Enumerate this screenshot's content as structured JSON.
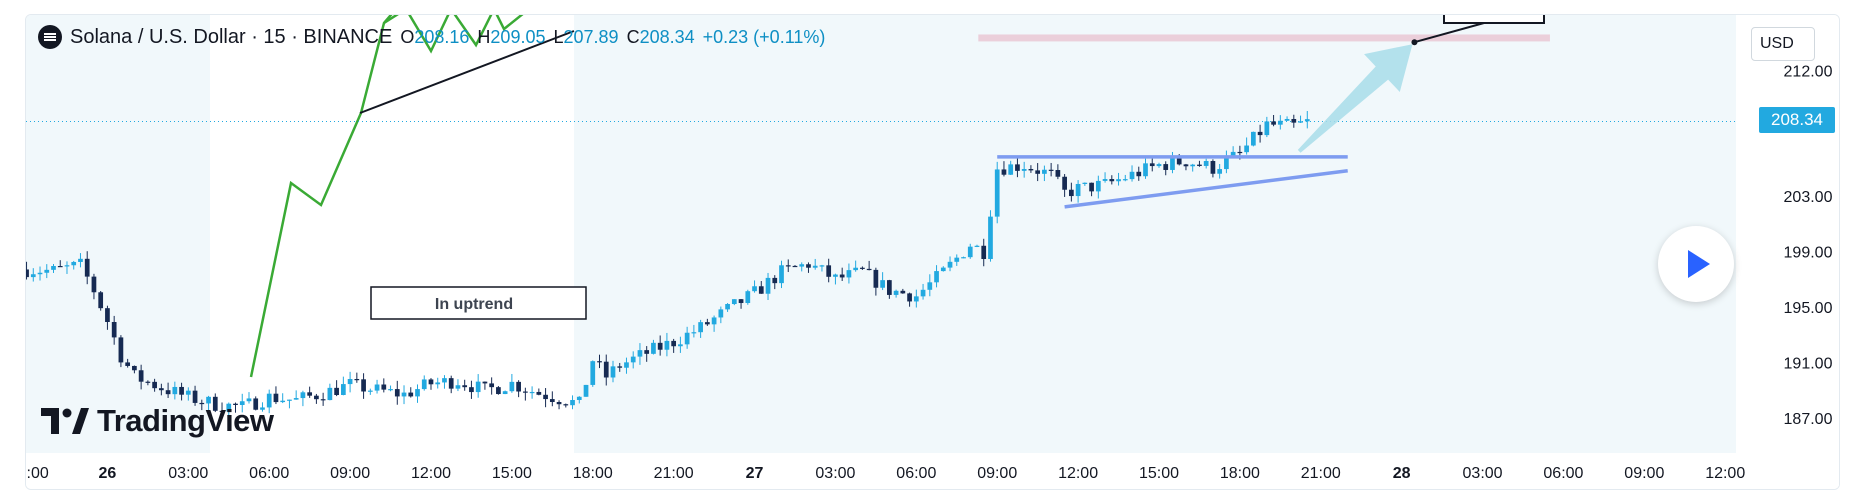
{
  "header": {
    "symbol": "Solana / U.S. Dollar · 15 · BINANCE",
    "open_label": "O",
    "open": "208.16",
    "high_label": "H",
    "high": "209.05",
    "low_label": "L",
    "low": "207.89",
    "close_label": "C",
    "close": "208.34",
    "change": "+0.23 (+0.11%)"
  },
  "currency": "USD",
  "last_price": "208.34",
  "branding": {
    "logo_text": "TradingView"
  },
  "colors": {
    "background": "#f1f8fb",
    "up_candle": "#22a9e0",
    "down_candle": "#162a52",
    "trendline": "#7e9cf0",
    "arrow": "#a8dde9",
    "target_zone": "#e8b4c4",
    "inset_line": "#3aaa35"
  },
  "chart_data": {
    "type": "candlestick",
    "y_axis": {
      "ticks": [
        212.0,
        203.0,
        199.0,
        195.0,
        191.0,
        187.0
      ],
      "tick_labels": [
        "212.00",
        "203.00",
        "199.00",
        "195.00",
        "191.00",
        "187.00"
      ],
      "range": [
        184.5,
        216.0
      ]
    },
    "x_axis": {
      "tick_labels": [
        ":00",
        "26",
        "03:00",
        "06:00",
        "09:00",
        "12:00",
        "15:00",
        "18:00",
        "21:00",
        "27",
        "03:00",
        "06:00",
        "09:00",
        "12:00",
        "15:00",
        "18:00",
        "21:00",
        "28",
        "03:00",
        "06:00",
        "09:00",
        "12:00"
      ],
      "tick_hours": [
        24,
        27,
        30,
        33,
        36,
        39,
        42,
        45,
        48,
        51,
        54,
        57,
        60,
        63,
        66,
        69,
        72,
        75,
        78,
        81,
        84,
        87
      ],
      "hour_range": [
        23.98,
        87.4
      ]
    },
    "price_path_hours": [
      24,
      25,
      26,
      26.5,
      27,
      27.5,
      28,
      29,
      30,
      31,
      32,
      33,
      34,
      35,
      36,
      37,
      38,
      39,
      40,
      41,
      42,
      43,
      44,
      44.5,
      45,
      45.5,
      46,
      47,
      48,
      49,
      50,
      51,
      52,
      53,
      54,
      55,
      56,
      57,
      58,
      59,
      59.5,
      60,
      61,
      62,
      62.5,
      63,
      64,
      65,
      66,
      67,
      68,
      69,
      70,
      71,
      71.6
    ],
    "price_path_values": [
      197.7,
      197.6,
      198.0,
      196.2,
      194.0,
      191.5,
      190.0,
      189.2,
      188.5,
      188.0,
      187.8,
      188.5,
      188.3,
      188.8,
      189.4,
      189.0,
      188.7,
      189.5,
      189.7,
      189.0,
      189.5,
      188.8,
      188.3,
      188.0,
      191.2,
      190.0,
      190.8,
      191.7,
      192.5,
      193.5,
      194.8,
      196.0,
      197.5,
      198.1,
      197.0,
      197.5,
      196.2,
      195.8,
      197.5,
      199.5,
      199.0,
      205.0,
      205.2,
      204.5,
      203.2,
      203.5,
      203.8,
      204.5,
      205.2,
      205.5,
      205.0,
      206.0,
      208.1,
      208.0,
      208.34
    ],
    "indicators": {
      "resistance_level": 205.8,
      "resistance_hours": [
        60,
        73
      ],
      "rising_trendline": {
        "hours": [
          62.5,
          73
        ],
        "values": [
          202.2,
          204.8
        ]
      },
      "target_zone": {
        "hours": [
          59.3,
          80.5
        ],
        "values": [
          214.1,
          214.6
        ]
      },
      "arrow": {
        "from_hour": 71.2,
        "from_value": 206.2,
        "to_hour": 75.4,
        "to_value": 213.9
      }
    },
    "inset_labels": [
      "In uptrend"
    ]
  }
}
